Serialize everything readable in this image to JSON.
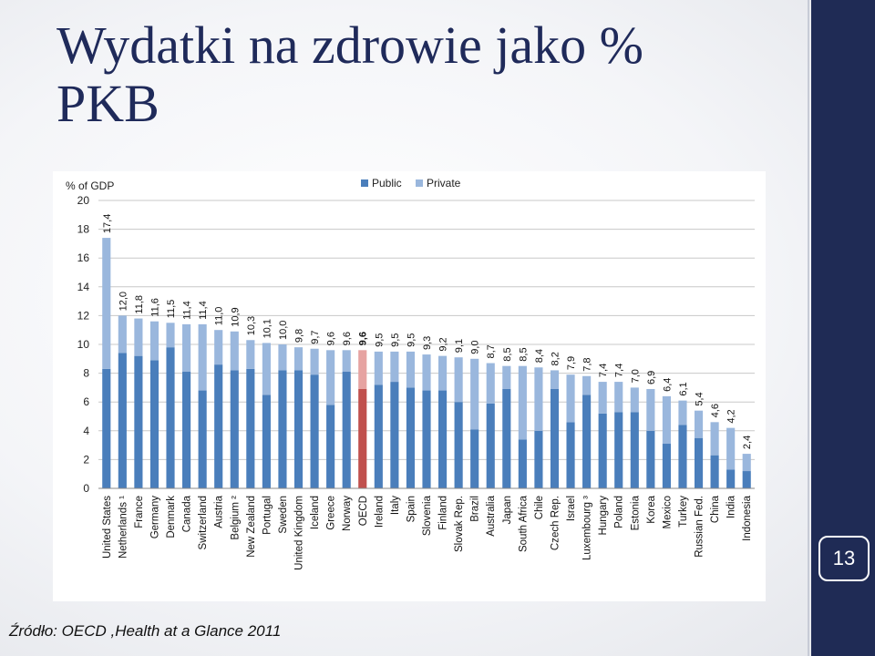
{
  "slide": {
    "title": "Wydatki na zdrowie jako % PKB",
    "page_number": "13",
    "source": "Źródło: OECD ,Health at a Glance 2011"
  },
  "colors": {
    "public": "#4a7ebb",
    "private": "#9ab7dd",
    "highlight_public": "#c0504d",
    "highlight_private": "#e6a3a1",
    "accent_band": "#1f2b55"
  },
  "chart_data": {
    "type": "bar",
    "stacked": true,
    "title": "",
    "ylabel": "% of GDP",
    "xlabel": "",
    "ylim": [
      0,
      20
    ],
    "yticks": [
      0,
      2,
      4,
      6,
      8,
      10,
      12,
      14,
      16,
      18,
      20
    ],
    "grid": true,
    "legend": "top-right",
    "highlight": "OECD",
    "categories": [
      "United States",
      "Netherlands ¹",
      "France",
      "Germany",
      "Denmark",
      "Canada",
      "Switzerland",
      "Austria",
      "Belgium ²",
      "New Zealand",
      "Portugal",
      "Sweden",
      "United Kingdom",
      "Iceland",
      "Greece",
      "Norway",
      "OECD",
      "Ireland",
      "Italy",
      "Spain",
      "Slovenia",
      "Finland",
      "Slovak Rep.",
      "Brazil",
      "Australia",
      "Japan",
      "South Africa",
      "Chile",
      "Czech Rep.",
      "Israel",
      "Luxembourg ³",
      "Hungary",
      "Poland",
      "Estonia",
      "Korea",
      "Mexico",
      "Turkey",
      "Russian Fed.",
      "China",
      "India",
      "Indonesia"
    ],
    "total_labels": [
      "17,4",
      "12,0",
      "11,8",
      "11,6",
      "11,5",
      "11,4",
      "11,4",
      "11,0",
      "10,9",
      "10,3",
      "10,1",
      "10,0",
      "9,8",
      "9,7",
      "9,6",
      "9,6",
      "9,6",
      "9,5",
      "9,5",
      "9,5",
      "9,3",
      "9,2",
      "9,1",
      "9,0",
      "8,7",
      "8,5",
      "8,5",
      "8,4",
      "8,2",
      "7,9",
      "7,8",
      "7,4",
      "7,4",
      "7,0",
      "6,9",
      "6,4",
      "6,1",
      "5,4",
      "4,6",
      "4,2",
      "2,4"
    ],
    "series": [
      {
        "name": "Public",
        "values": [
          8.3,
          9.4,
          9.2,
          8.9,
          9.8,
          8.1,
          6.8,
          8.6,
          8.2,
          8.3,
          6.5,
          8.2,
          8.2,
          7.9,
          5.8,
          8.1,
          6.9,
          7.2,
          7.4,
          7.0,
          6.8,
          6.8,
          6.0,
          4.1,
          5.9,
          6.9,
          3.4,
          4.0,
          6.9,
          4.6,
          6.5,
          5.2,
          5.3,
          5.3,
          4.0,
          3.1,
          4.4,
          3.5,
          2.3,
          1.3,
          1.2
        ]
      },
      {
        "name": "Private",
        "values": [
          9.1,
          2.6,
          2.6,
          2.7,
          1.7,
          3.3,
          4.6,
          2.4,
          2.7,
          2.0,
          3.6,
          1.8,
          1.6,
          1.8,
          3.8,
          1.5,
          2.7,
          2.3,
          2.1,
          2.5,
          2.5,
          2.4,
          3.1,
          4.9,
          2.8,
          1.6,
          5.1,
          4.4,
          1.3,
          3.3,
          1.3,
          2.2,
          2.1,
          1.7,
          2.9,
          3.3,
          1.7,
          1.9,
          2.3,
          2.9,
          1.2
        ]
      }
    ]
  }
}
